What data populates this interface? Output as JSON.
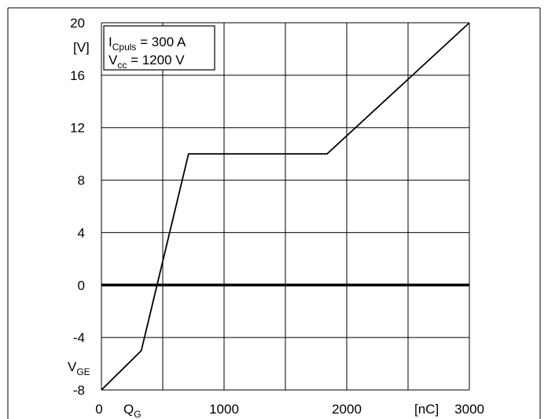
{
  "chart_data": {
    "type": "line",
    "x_label_main": "Q",
    "x_label_sub": "G",
    "x_unit": "[nC]",
    "y_label_main": "V",
    "y_label_sub": "GE",
    "y_unit": "[V]",
    "xlim": [
      0,
      3000
    ],
    "ylim": [
      -8,
      20
    ],
    "x_ticks": [
      0,
      1000,
      2000,
      3000
    ],
    "y_ticks": [
      20,
      16,
      12,
      8,
      4,
      0,
      -4,
      -8
    ],
    "grid": true,
    "x_grid_step": 500,
    "y_grid_step": 4,
    "zero_line_emphasized": true,
    "series": [
      {
        "x": [
          0,
          325,
          710,
          1840,
          3000
        ],
        "y": [
          -8,
          -5,
          10,
          10,
          20
        ]
      }
    ],
    "conditions": {
      "line1_main": "I",
      "line1_sub": "Cpuls",
      "line1_value": " = 300 A",
      "line2_main": "V",
      "line2_sub": "cc",
      "line2_value": " = 1200 V"
    }
  }
}
